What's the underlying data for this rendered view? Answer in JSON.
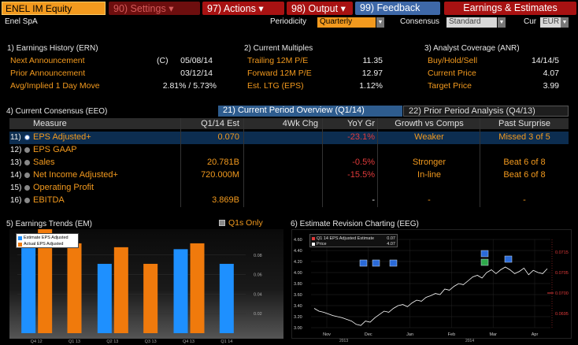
{
  "topbar": {
    "ticker": "ENEL IM Equity",
    "settings": "90) Settings",
    "actions": "97) Actions",
    "output": "98) Output",
    "feedback": "99) Feedback",
    "earnings": "Earnings & Estimates"
  },
  "row2": {
    "company": "Enel SpA",
    "periodicity_label": "Periodicity",
    "periodicity_value": "Quarterly",
    "consensus_label": "Consensus",
    "consensus_value": "Standard",
    "cur_label": "Cur",
    "cur_value": "EUR"
  },
  "earnings_history": {
    "title": "1) Earnings History (ERN)",
    "rows": [
      {
        "label": "Next Announcement",
        "flag": "(C)",
        "value": "05/08/14"
      },
      {
        "label": "Prior Announcement",
        "flag": "",
        "value": "03/12/14"
      },
      {
        "label": "Avg/Implied 1 Day Move",
        "flag": "",
        "value": "2.81% / 5.73%"
      }
    ]
  },
  "current_multiples": {
    "title": "2) Current Multiples",
    "rows": [
      {
        "label": "Trailing 12M P/E",
        "value": "11.35"
      },
      {
        "label": "Forward 12M P/E",
        "value": "12.97"
      },
      {
        "label": "Est. LTG (EPS)",
        "value": "1.12%"
      }
    ]
  },
  "analyst_coverage": {
    "title": "3) Analyst Coverage (ANR)",
    "rows": [
      {
        "label": "Buy/Hold/Sell",
        "value": "14/14/5"
      },
      {
        "label": "Current Price",
        "value": "4.07"
      },
      {
        "label": "Target Price",
        "value": "3.99"
      }
    ]
  },
  "consensus": {
    "title": "4) Current Consensus (EEO)",
    "tab_current": "21) Current Period Overview (Q1/14)",
    "tab_prior": "22) Prior Period Analysis (Q4/13)",
    "headers": [
      "Measure",
      "Q1/14 Est",
      "4Wk Chg",
      "YoY Gr",
      "Growth vs Comps",
      "Past Surprise"
    ],
    "rows": [
      {
        "num": "11)",
        "measure": "EPS Adjusted+",
        "est": "0.070",
        "chg": "",
        "yoy": "-23.1%",
        "growth": "Weaker",
        "surprise": "Missed 3 of 5"
      },
      {
        "num": "12)",
        "measure": "EPS GAAP",
        "est": "",
        "chg": "",
        "yoy": "",
        "growth": "",
        "surprise": ""
      },
      {
        "num": "13)",
        "measure": "Sales",
        "est": "20.781B",
        "chg": "",
        "yoy": "-0.5%",
        "growth": "Stronger",
        "surprise": "Beat 6 of 8"
      },
      {
        "num": "14)",
        "measure": "Net Income Adjusted+",
        "est": "720.000M",
        "chg": "",
        "yoy": "-15.5%",
        "growth": "In-line",
        "surprise": "Beat 6 of 8"
      },
      {
        "num": "15)",
        "measure": "Operating Profit",
        "est": "",
        "chg": "",
        "yoy": "",
        "growth": "",
        "surprise": ""
      },
      {
        "num": "16)",
        "measure": "EBITDA",
        "est": "3.869B",
        "chg": "",
        "yoy": "-",
        "growth": "-",
        "surprise": "-"
      }
    ]
  },
  "earnings_trends": {
    "title": "5) Earnings Trends (EM)",
    "q1s_only": "Q1s Only",
    "legend": [
      "Estimate EPS Adjusted",
      "Actual EPS Adjusted"
    ],
    "colors": {
      "estimate": "#1e90ff",
      "actual": "#f07a0c"
    },
    "chart_data": {
      "type": "bar",
      "categories": [
        "Q4 12",
        "Q1 13",
        "Q2 13",
        "Q3 13",
        "Q4 13",
        "Q1 14"
      ],
      "series": [
        {
          "name": "Estimate EPS Adjusted",
          "values": [
            0.095,
            null,
            0.071,
            null,
            0.086,
            0.071
          ]
        },
        {
          "name": "Actual EPS Adjusted",
          "values": [
            0.11,
            0.092,
            0.088,
            0.071,
            0.092,
            null
          ]
        }
      ],
      "yticks": [
        0.02,
        0.04,
        0.06,
        0.08
      ],
      "ylim": [
        0,
        0.1
      ]
    }
  },
  "revision_chart": {
    "title": "6) Estimate Revision Charting (EEG)",
    "legend": [
      {
        "label": "Q1 14 EPS Adjusted Estimate",
        "value": "0.07"
      },
      {
        "label": "Price",
        "value": "4.07"
      }
    ],
    "left_ticks": [
      "4.60",
      "4.40",
      "4.20",
      "4.00",
      "3.80",
      "3.60",
      "3.40",
      "3.20",
      "3.00"
    ],
    "right_ticks": [
      "0.0715",
      "0.0705",
      "0.0700",
      "0.0695"
    ],
    "x_labels": [
      "Nov",
      "Dec",
      "Jan",
      "Feb",
      "Mar",
      "Apr"
    ],
    "x_years": [
      "2013",
      "2014"
    ],
    "chart_data": {
      "type": "line",
      "ylim": [
        3.0,
        4.6
      ],
      "series": [
        {
          "name": "Price",
          "x": [
            0,
            1,
            2,
            3,
            4,
            5,
            6,
            7,
            8,
            9,
            10,
            11,
            12,
            13,
            14,
            15,
            16,
            17,
            18,
            19,
            20,
            21,
            22,
            23,
            24,
            25,
            26,
            27,
            28,
            29,
            30,
            31,
            32,
            33,
            34,
            35,
            36,
            37,
            38,
            39,
            40,
            41,
            42,
            43,
            44,
            45,
            46,
            47,
            48,
            49,
            50
          ],
          "values": [
            3.35,
            3.3,
            3.28,
            3.25,
            3.22,
            3.2,
            3.18,
            3.15,
            3.12,
            3.06,
            3.04,
            3.12,
            3.1,
            3.18,
            3.24,
            3.3,
            3.28,
            3.35,
            3.4,
            3.42,
            3.38,
            3.45,
            3.5,
            3.48,
            3.55,
            3.58,
            3.62,
            3.6,
            3.7,
            3.68,
            3.75,
            3.8,
            3.78,
            3.85,
            3.92,
            3.95,
            3.9,
            4.0,
            4.05,
            3.98,
            4.05,
            4.1,
            4.05,
            3.98,
            4.02,
            4.08,
            3.96,
            4.04,
            4.0,
            3.98,
            4.07
          ]
        }
      ]
    }
  }
}
